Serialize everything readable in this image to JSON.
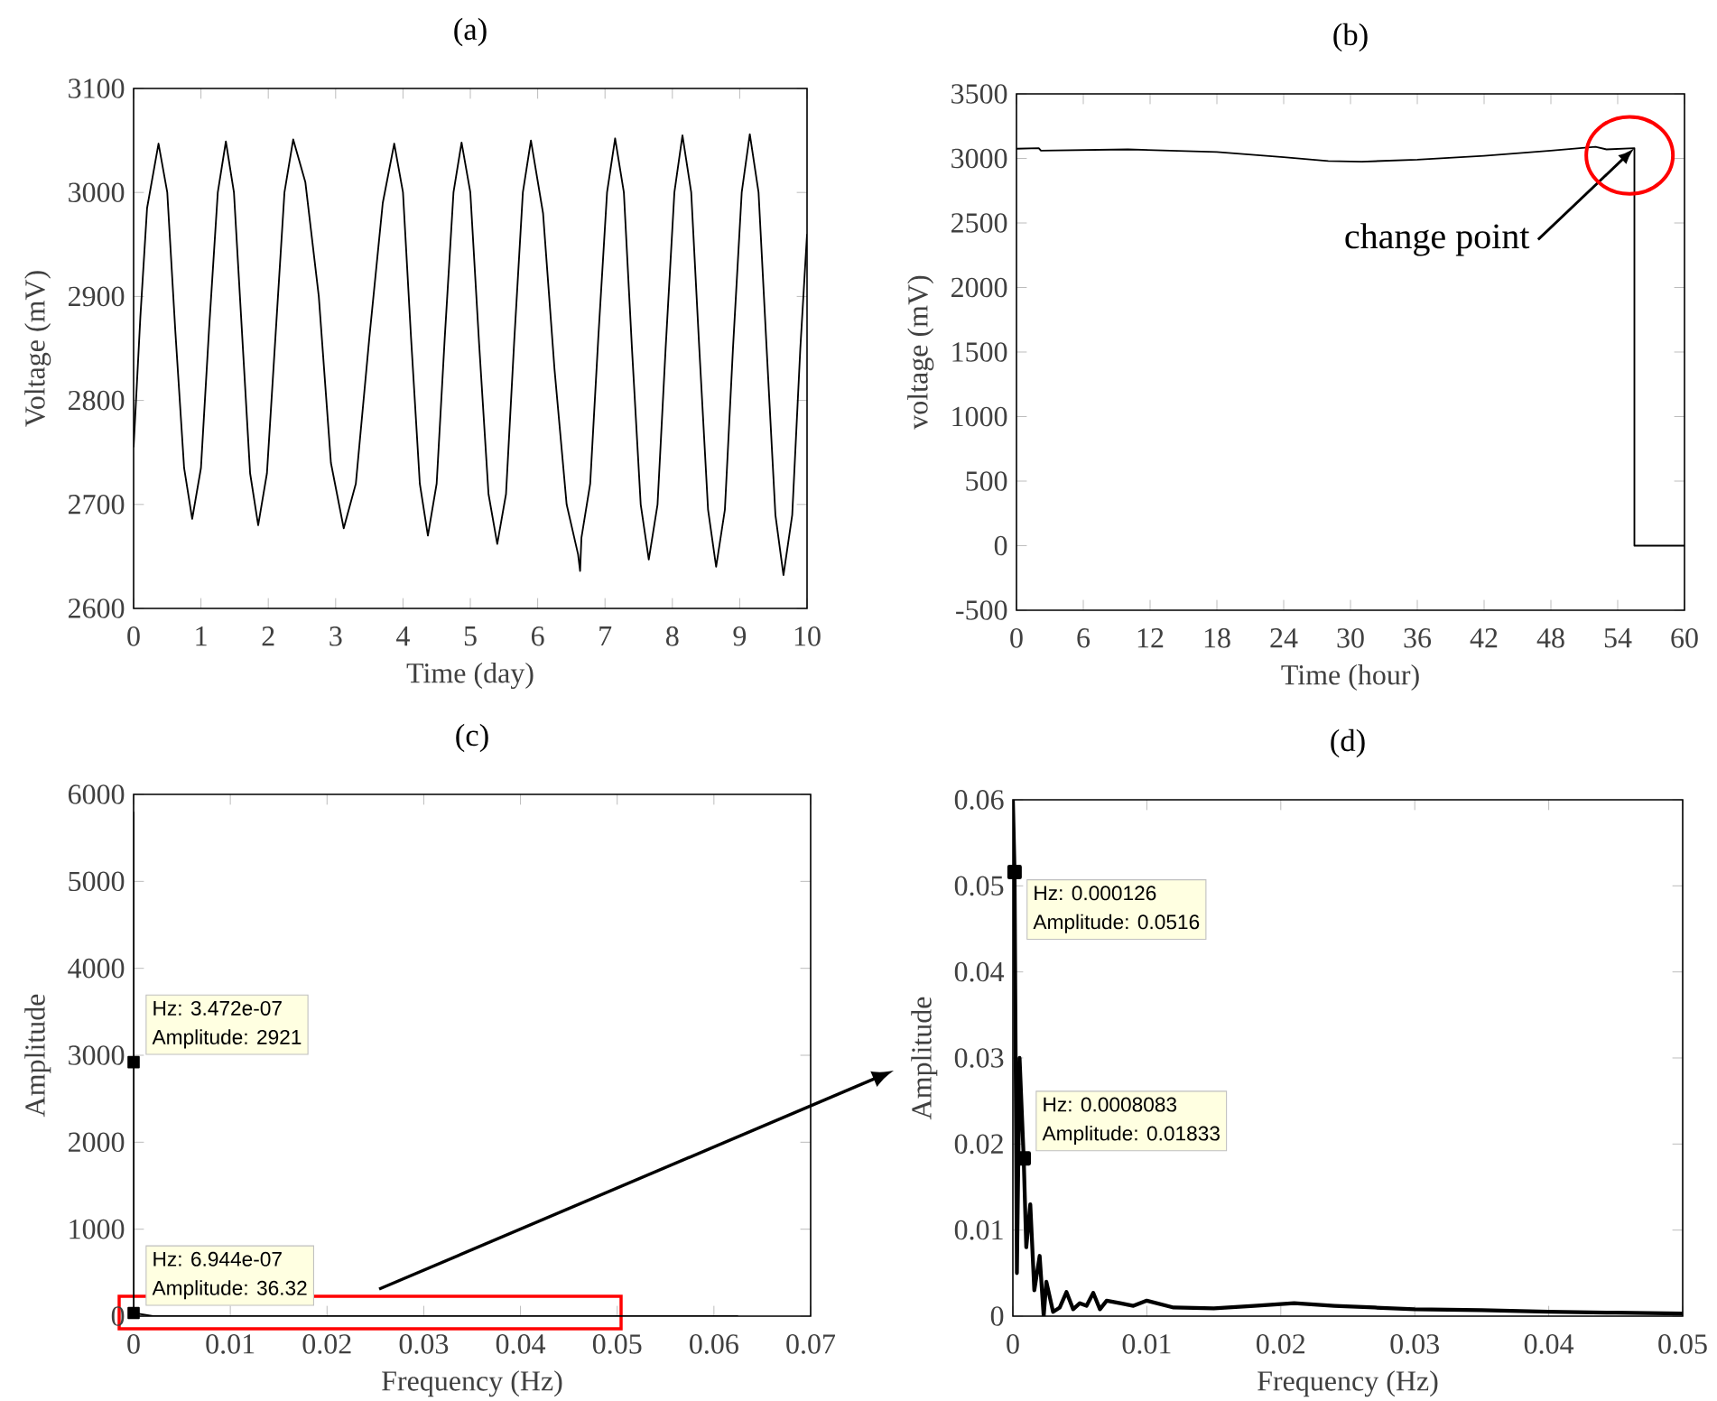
{
  "chart_data": [
    {
      "type": "line",
      "title": "(a)",
      "xlabel": "Time (day)",
      "ylabel": "Voltage (mV)",
      "xlim": [
        0,
        10
      ],
      "ylim": [
        2600,
        3100
      ],
      "xticks": [
        0,
        1,
        2,
        3,
        4,
        5,
        6,
        7,
        8,
        9,
        10
      ],
      "yticks": [
        2600,
        2700,
        2800,
        2900,
        3000,
        3100
      ],
      "series": [
        {
          "color": "#000000",
          "x": [
            0,
            0.1,
            0.2,
            0.37,
            0.5,
            0.62,
            0.75,
            0.87,
            1.0,
            1.12,
            1.25,
            1.37,
            1.49,
            1.61,
            1.73,
            1.85,
            1.98,
            2.11,
            2.24,
            2.37,
            2.55,
            2.75,
            2.93,
            3.12,
            3.3,
            3.5,
            3.7,
            3.87,
            4.0,
            4.12,
            4.25,
            4.37,
            4.5,
            4.62,
            4.75,
            4.87,
            5.0,
            5.13,
            5.27,
            5.4,
            5.53,
            5.65,
            5.78,
            5.9,
            6.08,
            6.25,
            6.43,
            6.6,
            6.63,
            6.65,
            6.78,
            6.9,
            7.03,
            7.15,
            7.28,
            7.4,
            7.53,
            7.65,
            7.78,
            7.9,
            8.03,
            8.15,
            8.28,
            8.4,
            8.53,
            8.65,
            8.78,
            8.9,
            9.03,
            9.15,
            9.28,
            9.4,
            9.53,
            9.65,
            9.78,
            9.9,
            10
          ],
          "values": [
            2755,
            2880,
            2985,
            3047,
            3000,
            2866,
            2735,
            2686,
            2735,
            2868,
            3000,
            3049,
            3000,
            2865,
            2730,
            2680,
            2730,
            2865,
            3000,
            3051,
            3010,
            2900,
            2740,
            2677,
            2720,
            2860,
            2990,
            3047,
            3000,
            2860,
            2720,
            2670,
            2720,
            2860,
            3000,
            3048,
            3000,
            2855,
            2710,
            2662,
            2710,
            2855,
            3000,
            3050,
            2980,
            2830,
            2700,
            2652,
            2636,
            2668,
            2720,
            2860,
            3000,
            3052,
            3000,
            2850,
            2700,
            2647,
            2700,
            2850,
            3000,
            3055,
            3000,
            2850,
            2695,
            2640,
            2695,
            2850,
            3000,
            3056,
            3000,
            2850,
            2690,
            2632,
            2690,
            2850,
            2960
          ]
        }
      ]
    },
    {
      "type": "line",
      "title": "(b)",
      "xlabel": "Time (hour)",
      "ylabel": "voltage (mV)",
      "xlim": [
        0,
        60
      ],
      "ylim": [
        -500,
        3500
      ],
      "xticks": [
        0,
        6,
        12,
        18,
        24,
        30,
        36,
        42,
        48,
        54,
        60
      ],
      "yticks": [
        -500,
        0,
        500,
        1000,
        1500,
        2000,
        2500,
        3000,
        3500
      ],
      "series": [
        {
          "color": "#000000",
          "x": [
            0,
            2,
            2.2,
            10,
            18,
            24,
            28,
            31,
            36,
            42,
            48,
            52,
            53,
            55.5,
            55.5,
            60
          ],
          "values": [
            3075,
            3080,
            3060,
            3070,
            3050,
            3010,
            2980,
            2975,
            2990,
            3020,
            3060,
            3090,
            3070,
            3080,
            0,
            0
          ]
        }
      ],
      "annotations": [
        {
          "text": "change point",
          "x": 55.5,
          "y": 3080
        }
      ]
    },
    {
      "type": "line",
      "title": "(c)",
      "xlabel": "Frequency (Hz)",
      "ylabel": "Amplitude",
      "xlim": [
        0,
        0.07
      ],
      "ylim": [
        0,
        6000
      ],
      "xticks": [
        0,
        0.01,
        0.02,
        0.03,
        0.04,
        0.05,
        0.06,
        0.07
      ],
      "yticks": [
        0,
        1000,
        2000,
        3000,
        4000,
        5000,
        6000
      ],
      "series": [
        {
          "color": "#000000",
          "x": [
            0,
            3.472e-07,
            6.944e-07,
            0.002,
            0.0625
          ],
          "values": [
            5800,
            2921,
            36.32,
            0,
            0
          ]
        },
        {
          "type": "scatter",
          "marker": "square",
          "color": "#000000",
          "x": [
            3.472e-07,
            6.944e-07
          ],
          "values": [
            2921,
            36.32
          ]
        }
      ],
      "annotations": [
        {
          "text": "Hz: 3.472e-07",
          "x": 3.472e-07,
          "y": 2921
        },
        {
          "text": "Amplitude: 2921",
          "x": 3.472e-07,
          "y": 2921
        },
        {
          "text": "Hz: 6.944e-07",
          "x": 6.944e-07,
          "y": 36.32
        },
        {
          "text": "Amplitude: 36.32",
          "x": 6.944e-07,
          "y": 36.32
        }
      ]
    },
    {
      "type": "line",
      "title": "(d)",
      "xlabel": "Frequency (Hz)",
      "ylabel": "Amplitude",
      "xlim": [
        0,
        0.05
      ],
      "ylim": [
        0,
        0.06
      ],
      "xticks": [
        0,
        0.01,
        0.02,
        0.03,
        0.04,
        0.05
      ],
      "yticks": [
        0,
        0.01,
        0.02,
        0.03,
        0.04,
        0.05,
        0.06
      ],
      "series": [
        {
          "color": "#000000",
          "x": [
            0,
            0.000126,
            0.0003,
            0.0005,
            0.0008083,
            0.001,
            0.0013,
            0.0016,
            0.002,
            0.0023,
            0.0025,
            0.003,
            0.0035,
            0.004,
            0.0045,
            0.005,
            0.0055,
            0.006,
            0.0065,
            0.007,
            0.008,
            0.009,
            0.01,
            0.012,
            0.015,
            0.018,
            0.021,
            0.024,
            0.027,
            0.03,
            0.035,
            0.04,
            0.045,
            0.05
          ],
          "values": [
            0.06,
            0.0516,
            0.005,
            0.03,
            0.01833,
            0.008,
            0.013,
            0.003,
            0.007,
            0.0,
            0.004,
            0.0005,
            0.001,
            0.0028,
            0.0008,
            0.0015,
            0.0012,
            0.0027,
            0.0008,
            0.0018,
            0.0015,
            0.0012,
            0.0018,
            0.001,
            0.0009,
            0.0012,
            0.0015,
            0.0012,
            0.001,
            0.0008,
            0.0007,
            0.0005,
            0.0004,
            0.0003
          ]
        },
        {
          "type": "scatter",
          "marker": "square",
          "color": "#000000",
          "x": [
            0.000126,
            0.0008083
          ],
          "values": [
            0.0516,
            0.01833
          ]
        }
      ],
      "annotations": [
        {
          "text": "Hz: 0.000126",
          "x": 0.000126,
          "y": 0.0516
        },
        {
          "text": "Amplitude: 0.0516",
          "x": 0.000126,
          "y": 0.0516
        },
        {
          "text": "Hz: 0.0008083",
          "x": 0.0008083,
          "y": 0.01833
        },
        {
          "text": "Amplitude: 0.01833",
          "x": 0.0008083,
          "y": 0.01833
        }
      ]
    }
  ]
}
